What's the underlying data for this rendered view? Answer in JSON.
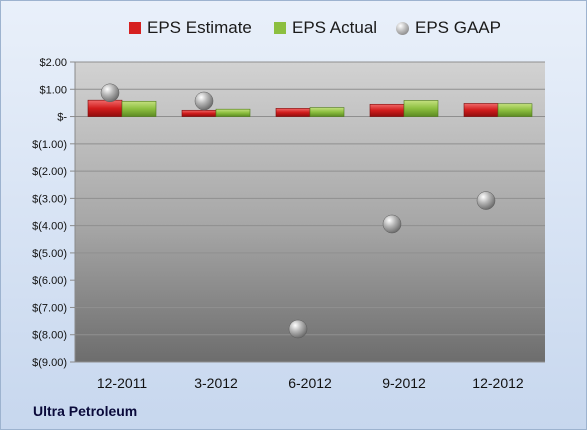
{
  "chart_data": {
    "type": "bar",
    "categories": [
      "12-2011",
      "3-2012",
      "6-2012",
      "9-2012",
      "12-2012"
    ],
    "series": [
      {
        "name": "EPS Estimate",
        "type": "bar",
        "color": "#d62020",
        "values": [
          0.6,
          0.23,
          0.3,
          0.45,
          0.48
        ]
      },
      {
        "name": "EPS Actual",
        "type": "bar",
        "color": "#8cbf3f",
        "values": [
          0.56,
          0.27,
          0.33,
          0.59,
          0.47
        ]
      },
      {
        "name": "EPS GAAP",
        "type": "scatter",
        "color": "#a0a0a0",
        "values": [
          0.87,
          0.57,
          -7.79,
          -3.94,
          -3.08
        ]
      }
    ],
    "y_ticks": [
      "$2.00",
      "$1.00",
      "$-",
      "$(1.00)",
      "$(2.00)",
      "$(3.00)",
      "$(4.00)",
      "$(5.00)",
      "$(6.00)",
      "$(7.00)",
      "$(8.00)",
      "$(9.00)"
    ],
    "ylim": [
      -9,
      2
    ],
    "grid": true,
    "legend_position": "top",
    "title": "",
    "xlabel": "",
    "ylabel": ""
  },
  "legend": {
    "estimate_label": "EPS Estimate",
    "actual_label": "EPS Actual",
    "gaap_label": "EPS GAAP"
  },
  "company_name": "Ultra Petroleum"
}
